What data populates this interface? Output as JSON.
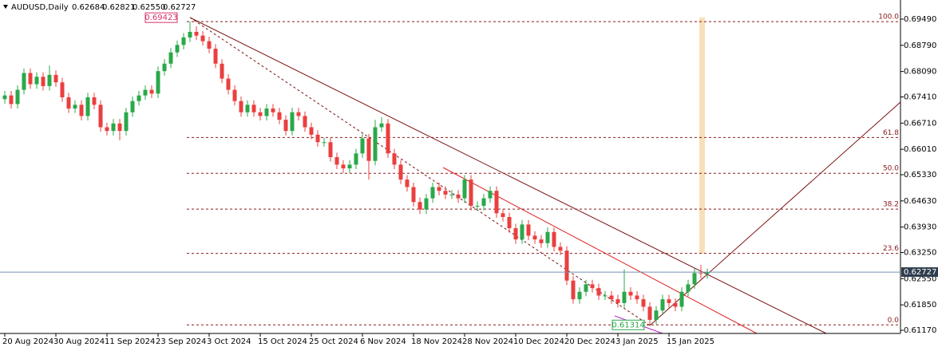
{
  "header": {
    "symbol": "AUDUSD,Daily",
    "open": "0.62684",
    "high": "0.62821",
    "low": "0.62550",
    "close": "0.62727"
  },
  "chart_data": {
    "type": "candlestick",
    "categories": [
      "20 Aug 2024",
      null,
      null,
      null,
      null,
      null,
      null,
      null,
      "30 Aug 2024",
      null,
      null,
      null,
      null,
      null,
      null,
      null,
      "11 Sep 2024",
      null,
      null,
      null,
      null,
      null,
      null,
      null,
      "23 Sep 2024",
      null,
      null,
      null,
      null,
      null,
      null,
      null,
      "3 Oct 2024",
      null,
      null,
      null,
      null,
      null,
      null,
      null,
      "15 Oct 2024",
      null,
      null,
      null,
      null,
      null,
      null,
      null,
      "25 Oct 2024",
      null,
      null,
      null,
      null,
      null,
      null,
      null,
      "6 Nov 2024",
      null,
      null,
      null,
      null,
      null,
      null,
      null,
      "18 Nov 2024",
      null,
      null,
      null,
      null,
      null,
      null,
      null,
      "28 Nov 2024",
      null,
      null,
      null,
      null,
      null,
      null,
      null,
      "10 Dec 2024",
      null,
      null,
      null,
      null,
      null,
      null,
      null,
      "20 Dec 2024",
      null,
      null,
      null,
      null,
      null,
      null,
      null,
      "3 Jan 2025",
      null,
      null,
      null,
      null,
      null,
      null,
      null,
      "15 Jan 2025",
      null,
      null,
      null,
      null,
      null,
      null
    ],
    "open": [
      0.6735,
      0.6745,
      0.6722,
      0.676,
      0.6805,
      0.6775,
      0.6795,
      0.677,
      0.68,
      0.678,
      0.674,
      0.671,
      0.672,
      0.669,
      0.674,
      0.672,
      0.666,
      0.665,
      0.667,
      0.665,
      0.67,
      0.673,
      0.6745,
      0.676,
      0.675,
      0.681,
      0.683,
      0.686,
      0.688,
      0.69,
      0.6915,
      0.6905,
      0.689,
      0.687,
      0.683,
      0.679,
      0.676,
      0.673,
      0.67,
      0.672,
      0.67,
      0.669,
      0.671,
      0.67,
      0.668,
      0.665,
      0.67,
      0.669,
      0.666,
      0.664,
      0.662,
      0.662,
      0.658,
      0.656,
      0.655,
      0.656,
      0.659,
      0.663,
      0.657,
      0.666,
      0.667,
      0.659,
      0.656,
      0.652,
      0.65,
      0.646,
      0.644,
      0.647,
      0.65,
      0.649,
      0.648,
      0.648,
      0.647,
      0.652,
      0.645,
      0.645,
      0.647,
      0.649,
      0.643,
      0.642,
      0.639,
      0.636,
      0.64,
      0.637,
      0.636,
      0.635,
      0.638,
      0.634,
      0.633,
      0.625,
      0.62,
      0.622,
      0.624,
      0.623,
      0.621,
      0.621,
      0.62,
      0.619,
      0.622,
      0.621,
      0.62,
      0.618,
      0.6145,
      0.617,
      0.62,
      0.619,
      0.618,
      0.622,
      0.624,
      0.627,
      0.62684
    ],
    "high": [
      0.6757,
      0.6757,
      0.6772,
      0.6817,
      0.6817,
      0.6807,
      0.6807,
      0.6825,
      0.6812,
      0.6792,
      0.6752,
      0.6732,
      0.6732,
      0.6752,
      0.6752,
      0.6732,
      0.6672,
      0.6682,
      0.6682,
      0.6712,
      0.6742,
      0.6757,
      0.6772,
      0.6772,
      0.6822,
      0.6842,
      0.6872,
      0.6892,
      0.6912,
      0.69423,
      0.693,
      0.6917,
      0.6902,
      0.6882,
      0.6842,
      0.6802,
      0.6772,
      0.6742,
      0.6732,
      0.6732,
      0.6712,
      0.6722,
      0.6722,
      0.6712,
      0.6692,
      0.6712,
      0.6712,
      0.6702,
      0.6672,
      0.6652,
      0.6632,
      0.6632,
      0.6592,
      0.6572,
      0.6572,
      0.6602,
      0.6642,
      0.6642,
      0.668,
      0.6687,
      0.6682,
      0.6602,
      0.6572,
      0.6532,
      0.6512,
      0.6472,
      0.6482,
      0.6512,
      0.6512,
      0.6502,
      0.6492,
      0.6492,
      0.6532,
      0.6532,
      0.6462,
      0.6482,
      0.6502,
      0.6502,
      0.6442,
      0.6432,
      0.6402,
      0.6412,
      0.6412,
      0.6382,
      0.6372,
      0.6392,
      0.6392,
      0.6352,
      0.6342,
      0.6262,
      0.6232,
      0.6252,
      0.6252,
      0.6242,
      0.6222,
      0.6222,
      0.6212,
      0.628,
      0.6232,
      0.6222,
      0.6212,
      0.6192,
      0.6182,
      0.6212,
      0.6212,
      0.6202,
      0.6232,
      0.6252,
      0.6282,
      0.6292,
      0.62821
    ],
    "low": [
      0.6723,
      0.671,
      0.671,
      0.6748,
      0.6763,
      0.6763,
      0.6758,
      0.6758,
      0.6768,
      0.6728,
      0.6698,
      0.6698,
      0.6678,
      0.6678,
      0.6708,
      0.6648,
      0.6638,
      0.6638,
      0.6625,
      0.6638,
      0.6688,
      0.6718,
      0.6733,
      0.6738,
      0.6738,
      0.6798,
      0.6818,
      0.6848,
      0.6868,
      0.6888,
      0.6893,
      0.6878,
      0.6858,
      0.6818,
      0.6778,
      0.6748,
      0.6718,
      0.6688,
      0.6688,
      0.6688,
      0.6678,
      0.6678,
      0.6688,
      0.6668,
      0.6638,
      0.6638,
      0.6678,
      0.6648,
      0.6628,
      0.6608,
      0.6608,
      0.6568,
      0.6548,
      0.6538,
      0.6538,
      0.6548,
      0.6578,
      0.652,
      0.6558,
      0.6648,
      0.6578,
      0.6548,
      0.6508,
      0.6488,
      0.6448,
      0.6428,
      0.6428,
      0.6458,
      0.6478,
      0.6468,
      0.6468,
      0.6458,
      0.6458,
      0.6438,
      0.6438,
      0.6438,
      0.6458,
      0.6418,
      0.6408,
      0.6378,
      0.6348,
      0.6348,
      0.6358,
      0.6348,
      0.6338,
      0.6338,
      0.6328,
      0.6318,
      0.6238,
      0.6188,
      0.6188,
      0.6208,
      0.6218,
      0.6198,
      0.6198,
      0.6188,
      0.6178,
      0.6178,
      0.6198,
      0.6188,
      0.6168,
      0.61314,
      0.6133,
      0.6158,
      0.6178,
      0.6168,
      0.6168,
      0.6208,
      0.6228,
      0.6256,
      0.6255
    ],
    "close": [
      0.6745,
      0.6722,
      0.676,
      0.6805,
      0.6775,
      0.6795,
      0.677,
      0.68,
      0.678,
      0.674,
      0.671,
      0.672,
      0.669,
      0.674,
      0.672,
      0.666,
      0.665,
      0.667,
      0.665,
      0.67,
      0.673,
      0.6745,
      0.676,
      0.675,
      0.681,
      0.683,
      0.686,
      0.688,
      0.69,
      0.6915,
      0.6905,
      0.689,
      0.687,
      0.683,
      0.679,
      0.676,
      0.673,
      0.67,
      0.672,
      0.67,
      0.669,
      0.671,
      0.67,
      0.668,
      0.665,
      0.67,
      0.669,
      0.666,
      0.664,
      0.662,
      0.662,
      0.658,
      0.656,
      0.655,
      0.656,
      0.659,
      0.663,
      0.657,
      0.666,
      0.667,
      0.659,
      0.656,
      0.652,
      0.65,
      0.646,
      0.644,
      0.647,
      0.65,
      0.649,
      0.648,
      0.648,
      0.647,
      0.652,
      0.645,
      0.645,
      0.647,
      0.649,
      0.643,
      0.642,
      0.639,
      0.636,
      0.64,
      0.637,
      0.636,
      0.635,
      0.638,
      0.634,
      0.633,
      0.625,
      0.62,
      0.622,
      0.624,
      0.623,
      0.621,
      0.621,
      0.62,
      0.619,
      0.622,
      0.621,
      0.62,
      0.618,
      0.6145,
      0.617,
      0.62,
      0.619,
      0.618,
      0.622,
      0.624,
      0.627,
      0.6268,
      0.62727
    ],
    "up_color": "#2aa84a",
    "down_color": "#ea3f3f",
    "grid": false,
    "ylim": [
      0.61086,
      0.70002
    ],
    "yticks": [
      {
        "value": 0.6949,
        "label": "0.69490"
      },
      {
        "value": 0.6879,
        "label": "0.68790"
      },
      {
        "value": 0.6809,
        "label": "0.68090"
      },
      {
        "value": 0.6741,
        "label": "0.67410"
      },
      {
        "value": 0.6671,
        "label": "0.66710"
      },
      {
        "value": 0.6601,
        "label": "0.66010"
      },
      {
        "value": 0.6533,
        "label": "0.65330"
      },
      {
        "value": 0.6463,
        "label": "0.64630"
      },
      {
        "value": 0.6393,
        "label": "0.63930"
      },
      {
        "value": 0.6325,
        "label": "0.63250"
      },
      {
        "value": 0.6255,
        "label": "0.62550"
      },
      {
        "value": 0.6185,
        "label": "0.61850"
      },
      {
        "value": 0.6117,
        "label": "0.61170"
      }
    ],
    "fib_levels": [
      {
        "value": 0.69423,
        "label": "100.0"
      },
      {
        "value": 0.66325,
        "label": "61.8"
      },
      {
        "value": 0.65369,
        "label": "50.0"
      },
      {
        "value": 0.64412,
        "label": "38.2"
      },
      {
        "value": 0.63228,
        "label": "23.6"
      },
      {
        "value": 0.61314,
        "label": "0.0"
      }
    ],
    "last_price": 0.62727,
    "annotations": [
      {
        "value": 0.69423,
        "color": "#d6336c"
      },
      {
        "value": 0.61314,
        "color": "#2aa84a"
      }
    ]
  }
}
